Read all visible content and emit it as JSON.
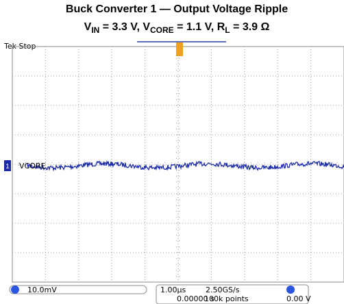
{
  "header": {
    "title": "Buck Converter 1 — Output Voltage Ripple",
    "subtitle": [
      "V",
      "IN",
      " = 3.3 V, V",
      "CORE",
      " = 1.1 V, R",
      "L",
      " = 3.9 Ω"
    ]
  },
  "scope": {
    "status": "Tek Stop",
    "channel_label": "VCORE",
    "channel_number": "1",
    "volts_per_div": "10.0mV",
    "time_per_div": "1.00µs",
    "sample_rate": "2.50GS/s",
    "trigger_position": "0.00000 s",
    "record_length": "100k points",
    "trigger_level": "0.00 V"
  }
}
